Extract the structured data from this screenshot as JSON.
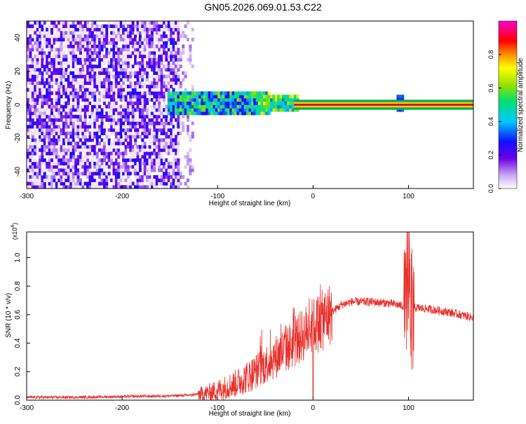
{
  "figure_title": "GN05.2026.069.01.53.C22",
  "colors": {
    "signal": "#e8302a",
    "axis": "#000000",
    "band_edge": "#00b050",
    "band_core": "#d01040",
    "background": "#ffffff"
  },
  "chart_data": [
    {
      "type": "heatmap",
      "title": "",
      "xlabel": "Height of straight line (km)",
      "ylabel": "Frequency (Hz)",
      "xlim": [
        -300,
        168
      ],
      "ylim": [
        -50,
        50
      ],
      "x_ticks": [
        "-300",
        "-200",
        "-100",
        "0",
        "100"
      ],
      "y_ticks": [
        "40",
        "20",
        "0",
        "-20",
        "-40"
      ],
      "grid": false,
      "colorbar": {
        "label": "Normalized spectral amplitude",
        "range": [
          0,
          1
        ],
        "ticks": [
          "0.0",
          "0.2",
          "0.4",
          "0.6",
          "0.8"
        ],
        "colormap": [
          "#ffffff",
          "#c8a8f0",
          "#6a00e8",
          "#1010ff",
          "#00c8ff",
          "#00e070",
          "#9ae000",
          "#ffff00",
          "#ff9000",
          "#ff0000",
          "#ff00c8"
        ]
      },
      "regions": [
        {
          "x_range": [
            -300,
            -130
          ],
          "freq_range": [
            -50,
            50
          ],
          "description_level": 0.18
        },
        {
          "x_range": [
            -150,
            -20
          ],
          "freq_range": [
            -7,
            7
          ],
          "description_level": 0.45
        },
        {
          "x_range": [
            -20,
            168
          ],
          "freq_range": [
            -1,
            1
          ],
          "description_level": 0.95
        },
        {
          "x_range": [
            88,
            94
          ],
          "freq_range": [
            -5,
            5
          ],
          "description_level": 0.3
        }
      ]
    },
    {
      "type": "line",
      "title": "",
      "xlabel": "Height of straight line (km)",
      "ylabel": "SNR (10 * v/v)",
      "y_multiplier": "(x10",
      "y_multiplier_exp": "4",
      "xlim": [
        -300,
        168
      ],
      "ylim": [
        0,
        1.18
      ],
      "x_ticks": [
        "-300",
        "-200",
        "-100",
        "0",
        "100"
      ],
      "y_ticks": [
        "0.0",
        "0.2",
        "0.4",
        "0.6",
        "0.8",
        "1.0"
      ],
      "grid": false,
      "series": [
        {
          "x": [
            -300,
            -250,
            -200,
            -150,
            -130,
            -110,
            -100,
            -80,
            -60,
            -40,
            -30,
            -20,
            -10,
            0,
            10,
            20,
            30,
            40,
            60,
            80,
            95,
            100,
            105,
            120,
            140,
            168
          ],
          "y": [
            0.02,
            0.02,
            0.025,
            0.03,
            0.035,
            0.05,
            0.07,
            0.12,
            0.2,
            0.3,
            0.35,
            0.4,
            0.46,
            0.52,
            0.56,
            0.62,
            0.67,
            0.69,
            0.69,
            0.68,
            0.66,
            1.15,
            0.65,
            0.64,
            0.62,
            0.58
          ]
        }
      ]
    }
  ]
}
